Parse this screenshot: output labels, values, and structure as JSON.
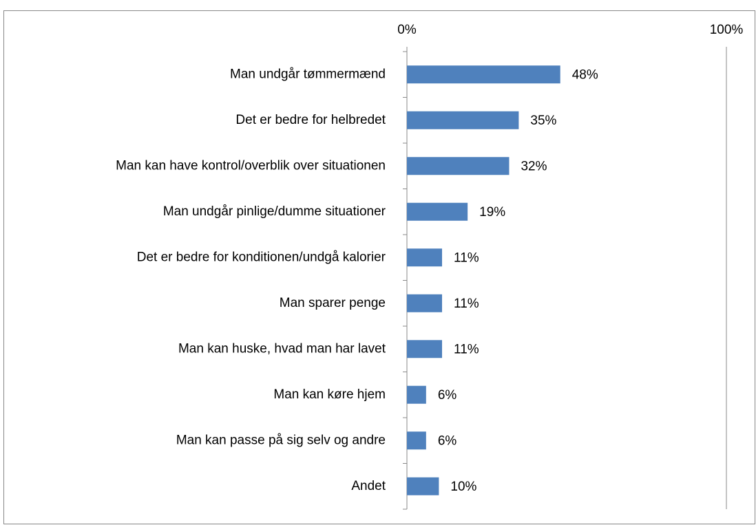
{
  "chart_data": {
    "type": "bar",
    "orientation": "horizontal",
    "categories": [
      "Man undgår tømmermænd",
      "Det er bedre for helbredet",
      "Man kan have kontrol/overblik over situationen",
      "Man undgår pinlige/dumme situationer",
      "Det er bedre for konditionen/undgå kalorier",
      "Man sparer penge",
      "Man kan huske, hvad man har lavet",
      "Man kan køre hjem",
      "Man kan passe på sig selv og andre",
      "Andet"
    ],
    "values": [
      48,
      35,
      32,
      19,
      11,
      11,
      11,
      6,
      6,
      10
    ],
    "value_labels": [
      "48%",
      "35%",
      "32%",
      "19%",
      "11%",
      "11%",
      "11%",
      "6%",
      "6%",
      "10%"
    ],
    "color": "#4f81bd",
    "xlim": [
      0,
      100
    ],
    "xticks": [
      {
        "value": 0,
        "label": "0%"
      },
      {
        "value": 100,
        "label": "100%"
      }
    ],
    "grid": true
  }
}
